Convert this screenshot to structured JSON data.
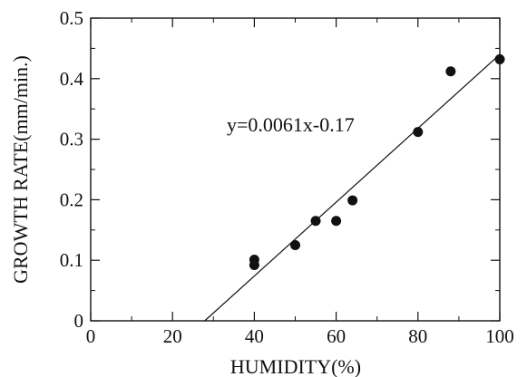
{
  "chart_data": {
    "type": "scatter",
    "xlabel": "HUMIDITY(%)",
    "ylabel": "GROWTH RATE(mm/min.)",
    "xlim": [
      0,
      100
    ],
    "ylim": [
      0,
      0.5
    ],
    "x_ticks": [
      "0",
      "20",
      "40",
      "60",
      "80",
      "100"
    ],
    "y_ticks": [
      "0",
      "0.1",
      "0.2",
      "0.3",
      "0.4",
      "0.5"
    ],
    "grid": false,
    "series": [
      {
        "x": [
          40,
          40,
          50,
          55,
          60,
          64,
          80,
          88,
          100
        ],
        "y": [
          0.092,
          0.101,
          0.125,
          0.165,
          0.165,
          0.199,
          0.312,
          0.412,
          0.432
        ]
      }
    ],
    "fit_line": {
      "slope": 0.0061,
      "intercept": -0.17,
      "x_range": [
        27.9,
        100
      ]
    },
    "annotation": "y=0.0061x-0.17",
    "marker_color": "#111111",
    "line_color": "#111111"
  }
}
